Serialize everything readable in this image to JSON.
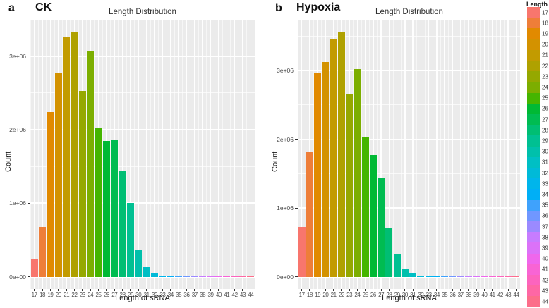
{
  "figure_labels": {
    "panel_a_letter": "a",
    "panel_b_letter": "b"
  },
  "chart_data": [
    {
      "type": "bar",
      "panel_letter": "a",
      "condition": "CK",
      "title": "Length Distribution",
      "xlabel": "Length of sRNA",
      "ylabel": "Count",
      "categories": [
        17,
        18,
        19,
        20,
        21,
        22,
        23,
        24,
        25,
        26,
        27,
        28,
        29,
        30,
        31,
        32,
        33,
        34,
        35,
        36,
        37,
        38,
        39,
        40,
        41,
        42,
        43,
        44
      ],
      "values": [
        250000,
        680000,
        2240000,
        2780000,
        3260000,
        3320000,
        2530000,
        3060000,
        2030000,
        1850000,
        1870000,
        1440000,
        1000000,
        375000,
        130000,
        50000,
        20000,
        8000,
        4000,
        2000,
        1500,
        1000,
        800,
        600,
        500,
        400,
        300,
        200
      ],
      "ytick_values": [
        0,
        1000000,
        2000000,
        3000000
      ],
      "ytick_labels": [
        "0e+00",
        "1e+06",
        "2e+06",
        "3e+06"
      ],
      "ylim": [
        0,
        3650000
      ],
      "grid": "white major+minor on grey panel",
      "legend_position": "shared right"
    },
    {
      "type": "bar",
      "panel_letter": "b",
      "condition": "Hypoxia",
      "title": "Length Distribution",
      "xlabel": "Length of sRNA",
      "ylabel": "Count",
      "categories": [
        17,
        18,
        19,
        20,
        21,
        22,
        23,
        24,
        25,
        26,
        27,
        28,
        29,
        30,
        31,
        32,
        33,
        34,
        35,
        36,
        37,
        38,
        39,
        40,
        41,
        42,
        43,
        44
      ],
      "values": [
        720000,
        1810000,
        2970000,
        3120000,
        3450000,
        3550000,
        2660000,
        3020000,
        2030000,
        1770000,
        1430000,
        710000,
        340000,
        120000,
        44000,
        15000,
        8000,
        5000,
        3000,
        2000,
        1500,
        1000,
        800,
        600,
        500,
        400,
        300,
        200
      ],
      "ytick_values": [
        0,
        1000000,
        2000000,
        3000000
      ],
      "ytick_labels": [
        "0e+00",
        "1e+06",
        "2e+06",
        "3e+06"
      ],
      "ylim": [
        0,
        3905000
      ],
      "grid": "white major+minor on grey panel",
      "legend_position": "shared right"
    }
  ],
  "legend": {
    "title": "Length",
    "entries": [
      {
        "label": "17",
        "color": "#F8766D"
      },
      {
        "label": "18",
        "color": "#EE7E39"
      },
      {
        "label": "19",
        "color": "#E18A00"
      },
      {
        "label": "20",
        "color": "#D39200"
      },
      {
        "label": "21",
        "color": "#C29B00"
      },
      {
        "label": "22",
        "color": "#AFA100"
      },
      {
        "label": "23",
        "color": "#95A800"
      },
      {
        "label": "24",
        "color": "#7CAE00"
      },
      {
        "label": "25",
        "color": "#45B500"
      },
      {
        "label": "26",
        "color": "#00B934"
      },
      {
        "label": "27",
        "color": "#00BC51"
      },
      {
        "label": "28",
        "color": "#00BE73"
      },
      {
        "label": "29",
        "color": "#00C092"
      },
      {
        "label": "30",
        "color": "#00C0AB"
      },
      {
        "label": "31",
        "color": "#00BFC4"
      },
      {
        "label": "32",
        "color": "#00BAD8"
      },
      {
        "label": "33",
        "color": "#00B5EB"
      },
      {
        "label": "34",
        "color": "#00AFF6"
      },
      {
        "label": "35",
        "color": "#3FA2FC"
      },
      {
        "label": "36",
        "color": "#7097FF"
      },
      {
        "label": "37",
        "color": "#9B8AFF"
      },
      {
        "label": "38",
        "color": "#C77CFF"
      },
      {
        "label": "39",
        "color": "#DB72F8"
      },
      {
        "label": "40",
        "color": "#EF67EC"
      },
      {
        "label": "41",
        "color": "#F864D4"
      },
      {
        "label": "42",
        "color": "#FC64BE"
      },
      {
        "label": "43",
        "color": "#FE67A5"
      },
      {
        "label": "44",
        "color": "#FC6E8A"
      }
    ]
  },
  "colors": {
    "figure_background": "#FFFFFF",
    "panel_background": "#EBEBEB",
    "gridline": "#FFFFFF",
    "axis_text": "#4D4D4D",
    "tick_mark": "#333333",
    "title_text": "#2F2F2F",
    "divider": "#3B3B3B"
  }
}
